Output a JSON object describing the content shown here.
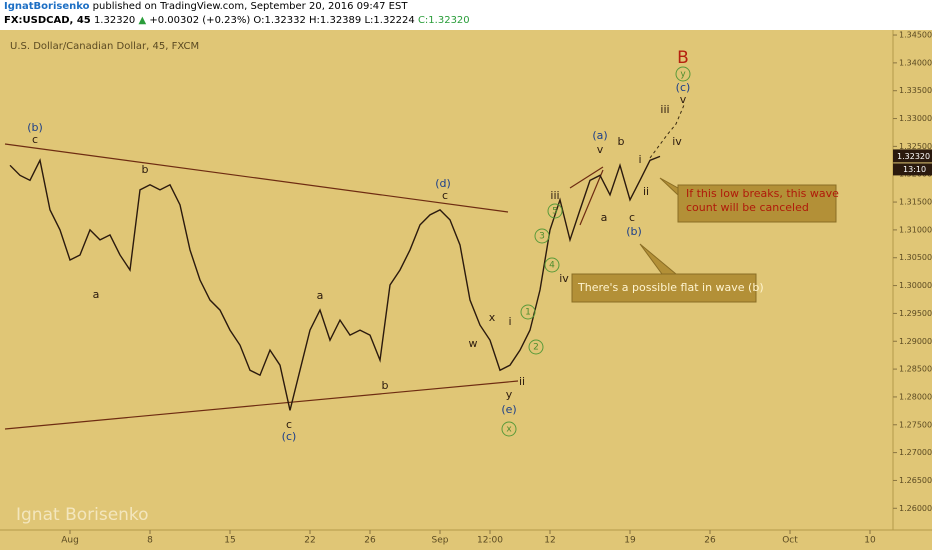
{
  "header": {
    "author": "IgnatBorisenko",
    "published": "published on TradingView.com, September 20, 2016 09:47 EST",
    "symbol": "FX:USDCAD, 45",
    "last": "1.32320",
    "arrow": "▲",
    "change": "+0.00302 (+0.23%)",
    "open": "O:1.32332",
    "high": "H:1.32389",
    "low": "L:1.32224",
    "close": "C:1.32320"
  },
  "chart_data": {
    "type": "line",
    "title": "U.S. Dollar/Canadian Dollar, 45, FXCM",
    "color": "#2b1a0e",
    "categories": [
      null,
      null,
      null,
      null,
      null,
      null,
      "Aug",
      null,
      null,
      null,
      null,
      null,
      null,
      null,
      "8",
      null,
      null,
      null,
      null,
      null,
      null,
      null,
      "15",
      null,
      null,
      null,
      null,
      null,
      null,
      null,
      "22",
      null,
      null,
      null,
      null,
      null,
      "26",
      null,
      null,
      null,
      null,
      null,
      null,
      "Sep",
      null,
      null,
      null,
      null,
      "12:00",
      null,
      null,
      null,
      null,
      null,
      "12",
      null,
      null,
      null,
      null,
      null,
      null,
      null,
      "19",
      null,
      null,
      null,
      null,
      null,
      null,
      null,
      "26",
      null,
      null,
      null,
      null,
      null,
      null,
      null,
      "Oct",
      null,
      null,
      null,
      null,
      null,
      null,
      null,
      "10",
      null
    ],
    "values": [
      1.3216,
      1.3198,
      1.3189,
      1.3225,
      1.3136,
      1.31,
      1.3046,
      1.3055,
      1.31,
      1.3082,
      1.3091,
      1.3055,
      1.3028,
      1.3172,
      1.3181,
      1.3172,
      1.3181,
      1.3145,
      1.3064,
      1.301,
      1.2974,
      1.2956,
      1.292,
      1.2893,
      1.2848,
      1.2839,
      1.2884,
      1.2857,
      1.2776,
      1.2848,
      1.292,
      1.2956,
      1.2902,
      1.2938,
      1.2911,
      1.292,
      1.2911,
      1.2866,
      1.3001,
      1.3028,
      1.3064,
      1.3109,
      1.3127,
      1.3136,
      1.3118,
      1.3073,
      1.2974,
      1.2929,
      1.2902,
      1.2848,
      1.2857,
      1.2884,
      1.292,
      1.2992,
      1.31,
      1.3154,
      1.3082,
      1.3136,
      1.3189,
      1.3198,
      1.3163,
      1.3216,
      1.3154,
      1.3189,
      1.3225,
      1.3232,
      null,
      null,
      null,
      null,
      null,
      null,
      null,
      null,
      null,
      null,
      null,
      null,
      null,
      null,
      null,
      null,
      null,
      null,
      null,
      null,
      null,
      null
    ],
    "ylim": [
      1.2561,
      1.3477
    ],
    "yticks": [
      {
        "value": 1.26,
        "label": "1.26000"
      },
      {
        "value": 1.265,
        "label": "1.26500"
      },
      {
        "value": 1.27,
        "label": "1.27000"
      },
      {
        "value": 1.275,
        "label": "1.27500"
      },
      {
        "value": 1.28,
        "label": "1.28000"
      },
      {
        "value": 1.285,
        "label": "1.28500"
      },
      {
        "value": 1.29,
        "label": "1.29000"
      },
      {
        "value": 1.295,
        "label": "1.29500"
      },
      {
        "value": 1.3,
        "label": "1.30000"
      },
      {
        "value": 1.305,
        "label": "1.30500"
      },
      {
        "value": 1.31,
        "label": "1.31000"
      },
      {
        "value": 1.315,
        "label": "1.31500"
      },
      {
        "value": 1.32,
        "label": "1.32000"
      },
      {
        "value": 1.325,
        "label": "1.32500"
      },
      {
        "value": 1.33,
        "label": "1.33000"
      },
      {
        "value": 1.335,
        "label": "1.33500"
      },
      {
        "value": 1.34,
        "label": "1.34000"
      },
      {
        "value": 1.345,
        "label": "1.34500"
      }
    ],
    "grid": false,
    "last_price": {
      "value": 1.3232,
      "label": "1.32320"
    },
    "countdown": "13:10",
    "watermark": "Ignat Borisenko",
    "callouts": [
      "If this low breaks, this wave count will be canceled",
      "There's a possible flat in wave (b)"
    ],
    "annotations": [
      "B",
      "y",
      "(c)",
      "v",
      "iii",
      "iv",
      "(a)",
      "v",
      "b",
      "i",
      "ii",
      "a",
      "c",
      "(b)",
      "iii",
      "5",
      "3",
      "4",
      "iv",
      "1",
      "2",
      "i",
      "x",
      "w",
      "ii",
      "y",
      "(e)",
      "x",
      "(d)",
      "c",
      "b",
      "a",
      "c",
      "(c)",
      "a",
      "b",
      "(b)",
      "c"
    ]
  }
}
